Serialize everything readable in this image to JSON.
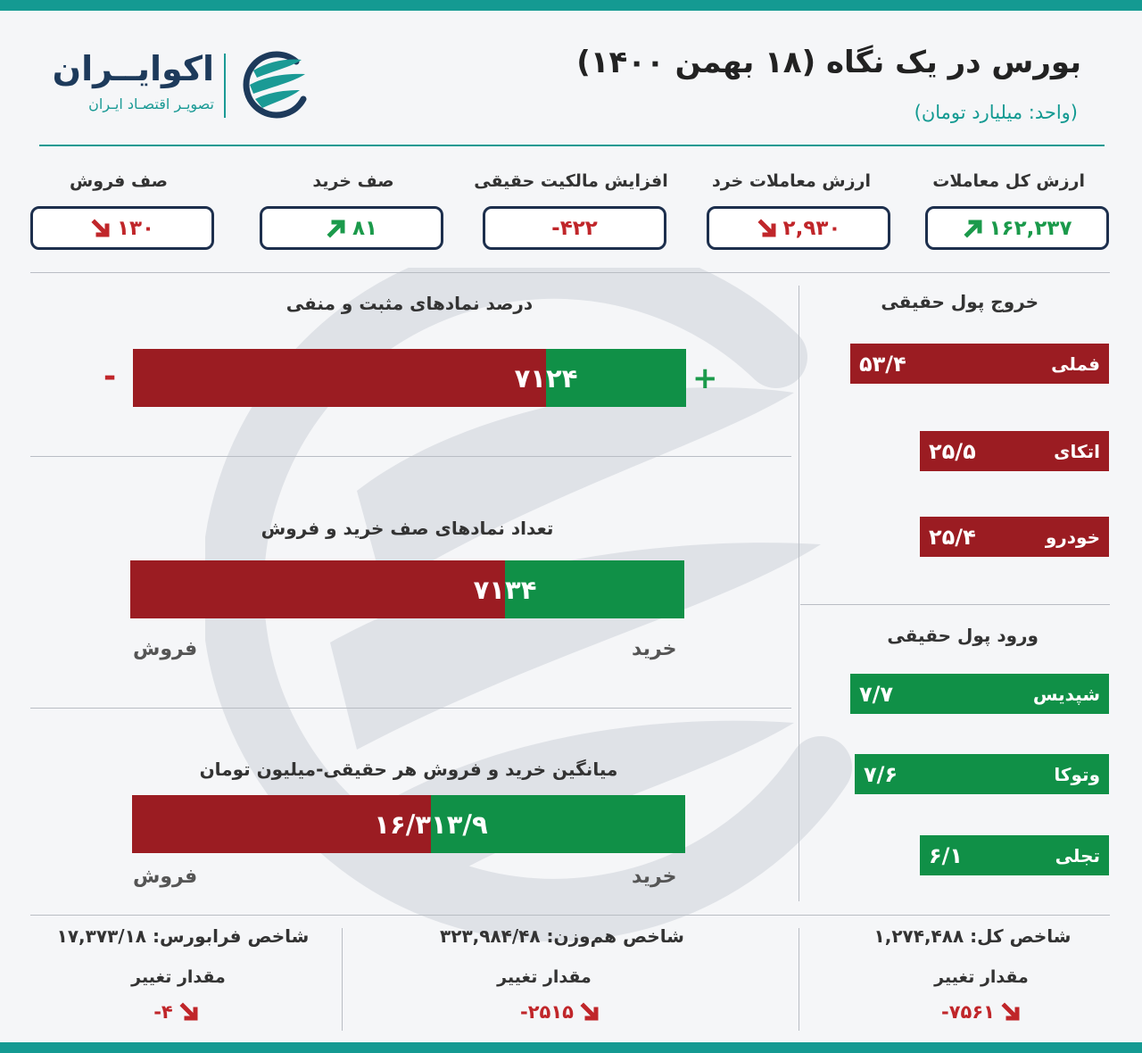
{
  "header": {
    "title": "بورس در یک نگاه (۱۸ بهمن ۱۴۰۰)",
    "unit": "(واحد: میلیارد تومان)"
  },
  "logo": {
    "name": "اکوایــران",
    "tagline": "تصویـر اقتصـاد ایـران"
  },
  "colors": {
    "accent": "#149a92",
    "negative": "#9b1c22",
    "positive": "#109047",
    "navy": "#1d2f4d"
  },
  "stats": [
    {
      "label": "ارزش کل معاملات",
      "value": "۱۶۲,۲۳۷",
      "trend": "up"
    },
    {
      "label": "ارزش معاملات خرد",
      "value": "۲,۹۳۰",
      "trend": "down"
    },
    {
      "label": "افزایش مالکیت حقیقی",
      "value": "-۴۲۲",
      "trend": "none"
    },
    {
      "label": "صف خرید",
      "value": "۸۱",
      "trend": "up"
    },
    {
      "label": "صف فروش",
      "value": "۱۳۰",
      "trend": "down"
    }
  ],
  "breadth": {
    "title": "درصد نمادهای مثبت و منفی",
    "positive": 24,
    "negative": 71,
    "positive_label": "۲۴",
    "negative_label": "۷۱",
    "plus_sign": "+",
    "minus_sign": "-"
  },
  "queues": {
    "title": "تعداد نمادهای صف خرید و فروش",
    "buy": 34,
    "sell": 71,
    "buy_label": "۳۴",
    "sell_label": "۷۱",
    "buy_text": "خرید",
    "sell_text": "فروش"
  },
  "avg_trade": {
    "title": "میانگین خرید و فروش هر حقیقی-میلیون تومان",
    "buy": 13.9,
    "sell": 16.3,
    "buy_label": "۱۳/۹",
    "sell_label": "۱۶/۳",
    "buy_text": "خرید",
    "sell_text": "فروش"
  },
  "outflow": {
    "title": "خروج پول حقیقی",
    "items": [
      {
        "name": "فملی",
        "value": 53.4,
        "label": "۵۳/۴"
      },
      {
        "name": "اتکای",
        "value": 25.5,
        "label": "۲۵/۵"
      },
      {
        "name": "خودرو",
        "value": 25.4,
        "label": "۲۵/۴"
      }
    ]
  },
  "inflow": {
    "title": "ورود پول حقیقی",
    "items": [
      {
        "name": "شپدیس",
        "value": 7.7,
        "label": "۷/۷"
      },
      {
        "name": "وتوکا",
        "value": 7.6,
        "label": "۷/۶"
      },
      {
        "name": "تجلی",
        "value": 6.1,
        "label": "۶/۱"
      }
    ]
  },
  "indices": [
    {
      "title": "شاخص کل: ۱,۲۷۴,۴۸۸",
      "change_label": "مقدار تغییر",
      "change": "-۷۵۶۱"
    },
    {
      "title": "شاخص هم‌وزن: ۳۲۳,۹۸۴/۴۸",
      "change_label": "مقدار تغییر",
      "change": "-۲۵۱۵"
    },
    {
      "title": "شاخص فرابورس: ۱۷,۳۷۳/۱۸",
      "change_label": "مقدار تغییر",
      "change": "-۴"
    }
  ]
}
